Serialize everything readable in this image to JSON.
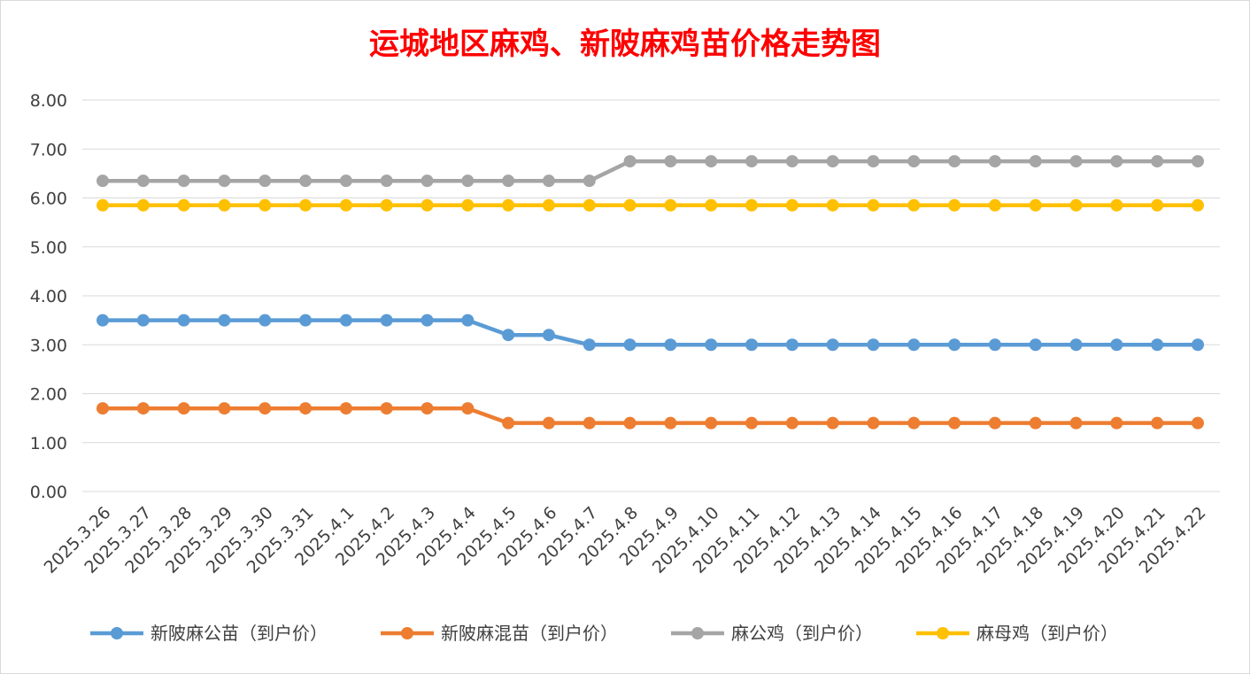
{
  "chart_data": {
    "type": "line",
    "title": "运城地区麻鸡、新陂麻鸡苗价格走势图",
    "xlabel": "",
    "ylabel": "",
    "ylim": [
      0,
      8
    ],
    "yticks": [
      "0.00",
      "1.00",
      "2.00",
      "3.00",
      "4.00",
      "5.00",
      "6.00",
      "7.00",
      "8.00"
    ],
    "grid": true,
    "legend_position": "bottom",
    "categories": [
      "2025.3.26",
      "2025.3.27",
      "2025.3.28",
      "2025.3.29",
      "2025.3.30",
      "2025.3.31",
      "2025.4.1",
      "2025.4.2",
      "2025.4.3",
      "2025.4.4",
      "2025.4.5",
      "2025.4.6",
      "2025.4.7",
      "2025.4.8",
      "2025.4.9",
      "2025.4.10",
      "2025.4.11",
      "2025.4.12",
      "2025.4.13",
      "2025.4.14",
      "2025.4.15",
      "2025.4.16",
      "2025.4.17",
      "2025.4.18",
      "2025.4.19",
      "2025.4.20",
      "2025.4.21",
      "2025.4.22"
    ],
    "series": [
      {
        "name": "新陂麻公苗（到户价）",
        "color": "#5b9bd5",
        "values": [
          3.5,
          3.5,
          3.5,
          3.5,
          3.5,
          3.5,
          3.5,
          3.5,
          3.5,
          3.5,
          3.2,
          3.2,
          3.0,
          3.0,
          3.0,
          3.0,
          3.0,
          3.0,
          3.0,
          3.0,
          3.0,
          3.0,
          3.0,
          3.0,
          3.0,
          3.0,
          3.0,
          3.0
        ]
      },
      {
        "name": "新陂麻混苗（到户价）",
        "color": "#ed7d31",
        "values": [
          1.7,
          1.7,
          1.7,
          1.7,
          1.7,
          1.7,
          1.7,
          1.7,
          1.7,
          1.7,
          1.4,
          1.4,
          1.4,
          1.4,
          1.4,
          1.4,
          1.4,
          1.4,
          1.4,
          1.4,
          1.4,
          1.4,
          1.4,
          1.4,
          1.4,
          1.4,
          1.4,
          1.4
        ]
      },
      {
        "name": "麻公鸡（到户价）",
        "color": "#a5a5a5",
        "values": [
          6.35,
          6.35,
          6.35,
          6.35,
          6.35,
          6.35,
          6.35,
          6.35,
          6.35,
          6.35,
          6.35,
          6.35,
          6.35,
          6.75,
          6.75,
          6.75,
          6.75,
          6.75,
          6.75,
          6.75,
          6.75,
          6.75,
          6.75,
          6.75,
          6.75,
          6.75,
          6.75,
          6.75
        ]
      },
      {
        "name": "麻母鸡（到户价）",
        "color": "#ffc000",
        "values": [
          5.85,
          5.85,
          5.85,
          5.85,
          5.85,
          5.85,
          5.85,
          5.85,
          5.85,
          5.85,
          5.85,
          5.85,
          5.85,
          5.85,
          5.85,
          5.85,
          5.85,
          5.85,
          5.85,
          5.85,
          5.85,
          5.85,
          5.85,
          5.85,
          5.85,
          5.85,
          5.85,
          5.85
        ]
      }
    ]
  }
}
